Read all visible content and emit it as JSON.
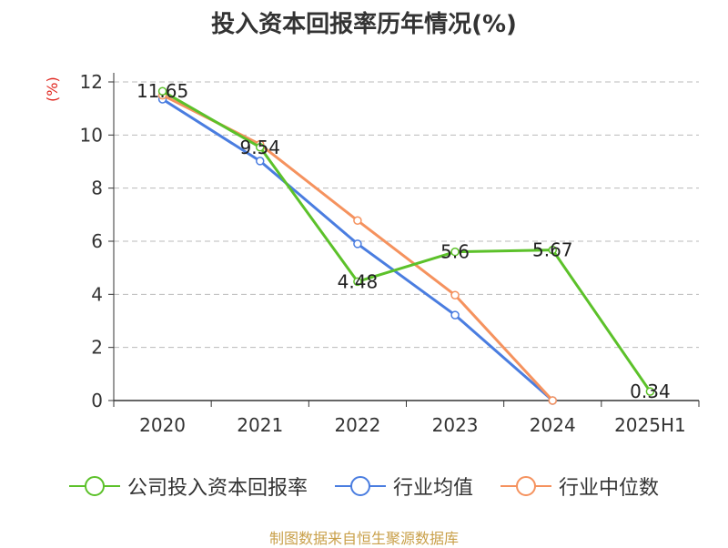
{
  "chart_data": {
    "type": "line",
    "title": "投入资本回报率历年情况(%)",
    "ylabel": "(%)",
    "categories": [
      "2020",
      "2021",
      "2022",
      "2023",
      "2024",
      "2025H1"
    ],
    "ylim": [
      0,
      12
    ],
    "yticks": [
      "0",
      "2",
      "4",
      "6",
      "8",
      "10",
      "12"
    ],
    "grid": true,
    "legend_position": "bottom",
    "series": [
      {
        "name": "公司投入资本回报率",
        "color": "#5cc12a",
        "values": [
          11.65,
          9.54,
          4.48,
          5.6,
          5.67,
          0.34
        ],
        "labels": [
          "11.65",
          "9.54",
          "4.48",
          "5.6",
          "5.67",
          "0.34"
        ]
      },
      {
        "name": "行业均值",
        "color": "#4a7de0",
        "values": [
          11.35,
          9.02,
          5.9,
          3.22,
          0.0,
          null
        ]
      },
      {
        "name": "行业中位数",
        "color": "#f5925e",
        "values": [
          11.5,
          9.65,
          6.78,
          3.97,
          0.0,
          null
        ]
      }
    ]
  },
  "source": "制图数据来自恒生聚源数据库"
}
